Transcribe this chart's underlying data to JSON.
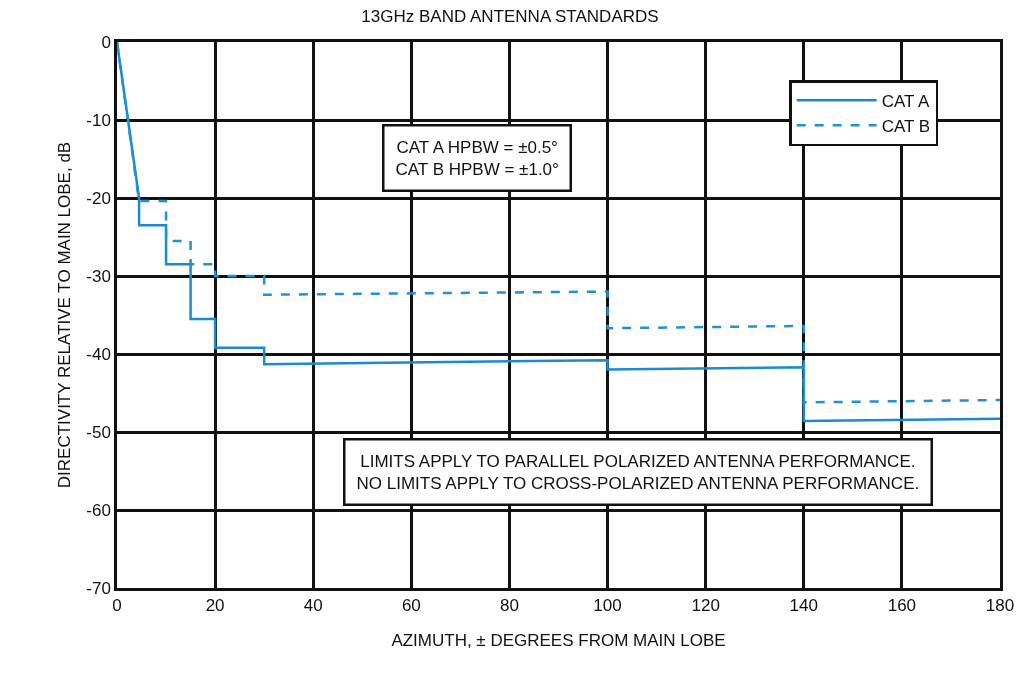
{
  "chart_data": {
    "type": "line",
    "title": "13GHz BAND ANTENNA STANDARDS",
    "xlabel": "AZIMUTH, ± DEGREES FROM MAIN LOBE",
    "ylabel": "DIRECTIVITY RELATIVE TO MAIN LOBE, dB",
    "annotations": [
      "CAT A HPBW = ±0.5°\nCAT B HPBW = ±1.0°",
      "LIMITS APPLY TO PARALLEL POLARIZED ANTENNA PERFORMANCE.\nNO LIMITS APPLY TO CROSS-POLARIZED ANTENNA PERFORMANCE."
    ],
    "series": [
      {
        "name": "CAT A",
        "color": "#1a8ad4",
        "line_style": "solid",
        "x": [
          0,
          4.5,
          4.5,
          10,
          10,
          15,
          15,
          20,
          20,
          30,
          30,
          100,
          100,
          140,
          140,
          180
        ],
        "values": [
          0,
          -20,
          -23.5,
          -23.5,
          -28.5,
          -28.5,
          -35.5,
          -35.5,
          -39.2,
          -39.2,
          -41.3,
          -40.8,
          -42,
          -41.7,
          -48.6,
          -48.3
        ]
      },
      {
        "name": "CAT B",
        "color": "#2090d8",
        "line_style": "dashed",
        "x": [
          0,
          4.5,
          10,
          10,
          15,
          15,
          20,
          20,
          30,
          30,
          100,
          100,
          140,
          140,
          180
        ],
        "values": [
          0,
          -20.4,
          -20.4,
          -25.5,
          -25.5,
          -28.5,
          -28.5,
          -30,
          -30,
          -32.4,
          -32,
          -36.7,
          -36.4,
          -46.2,
          -45.9
        ]
      }
    ],
    "xlim": [
      0,
      180
    ],
    "xticks": [
      0,
      20,
      40,
      60,
      80,
      100,
      120,
      140,
      160,
      180
    ],
    "ylim": [
      -70,
      0
    ],
    "yticks": [
      -70,
      -60,
      -50,
      -40,
      -30,
      -20,
      -10,
      0
    ],
    "grid": true,
    "legend": "top right",
    "marker": "none"
  }
}
